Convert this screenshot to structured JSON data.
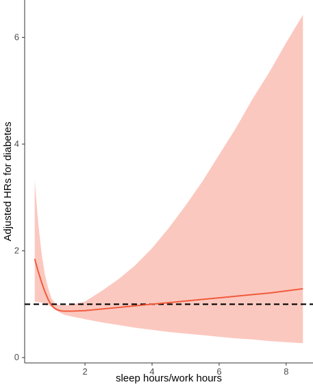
{
  "chart_data": {
    "type": "line",
    "title": "",
    "xlabel": "sleep hours/work hours",
    "ylabel": "Adjusted HRs for diabetes",
    "xlim": [
      0.2,
      8.8
    ],
    "ylim": [
      -0.1,
      6.7
    ],
    "x_ticks": [
      2,
      4,
      6,
      8
    ],
    "y_ticks": [
      0,
      2,
      4,
      6
    ],
    "grid": false,
    "legend": "none",
    "reference_line": {
      "y": 1,
      "style": "dashed",
      "color": "#000000"
    },
    "series": [
      {
        "x": [
          0.5,
          0.6,
          0.7,
          0.8,
          0.9,
          1.0,
          1.1,
          1.2,
          1.3,
          1.4,
          1.6,
          2.0,
          2.5,
          3.0,
          3.5,
          4.0,
          4.5,
          5.0,
          5.5,
          6.0,
          6.5,
          7.0,
          7.5,
          8.0,
          8.5
        ],
        "y": [
          1.85,
          1.62,
          1.42,
          1.24,
          1.09,
          0.98,
          0.92,
          0.89,
          0.875,
          0.87,
          0.87,
          0.88,
          0.91,
          0.94,
          0.97,
          1.0,
          1.03,
          1.06,
          1.09,
          1.12,
          1.15,
          1.18,
          1.21,
          1.25,
          1.29
        ],
        "lower": [
          1.05,
          1.04,
          1.03,
          1.01,
          0.99,
          0.95,
          0.9,
          0.86,
          0.83,
          0.8,
          0.77,
          0.72,
          0.66,
          0.61,
          0.56,
          0.52,
          0.48,
          0.45,
          0.42,
          0.39,
          0.36,
          0.34,
          0.31,
          0.29,
          0.27
        ],
        "upper": [
          3.32,
          2.55,
          1.97,
          1.57,
          1.3,
          1.11,
          1.02,
          0.99,
          0.98,
          0.98,
          0.99,
          1.05,
          1.25,
          1.47,
          1.73,
          2.05,
          2.43,
          2.85,
          3.3,
          3.8,
          4.3,
          4.85,
          5.35,
          5.9,
          6.42
        ],
        "line_color": "#f15a3b",
        "band_color": "#fbc8bf"
      }
    ]
  }
}
